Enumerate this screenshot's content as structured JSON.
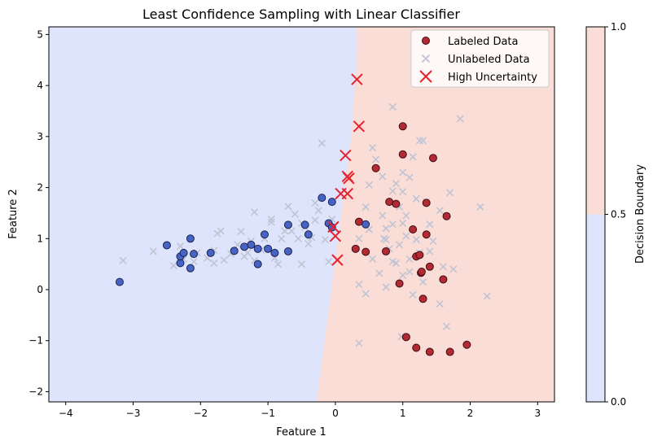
{
  "chart_data": {
    "type": "scatter",
    "title": "Least Confidence Sampling with Linear Classifier",
    "xlabel": "Feature 1",
    "ylabel": "Feature 2",
    "xlim": [
      -4.25,
      3.25
    ],
    "ylim": [
      -2.2,
      5.15
    ],
    "xticks": [
      -4,
      -3,
      -2,
      -1,
      0,
      1,
      2,
      3
    ],
    "yticks": [
      -2,
      -1,
      0,
      1,
      2,
      3,
      4,
      5
    ],
    "legend_position": "top-right",
    "colors": {
      "class0_region": "#dde4fb",
      "class1_region": "#f9ddd6",
      "class0_point": "#4863c6",
      "class1_point": "#b32a35",
      "unlabeled": "#c0c4d4",
      "high_uncertainty": "#e8212f"
    },
    "decision_boundary": [
      [
        0.32,
        5.15
      ],
      [
        0.32,
        4.6
      ],
      [
        0.28,
        3.9
      ],
      [
        0.25,
        3.2
      ],
      [
        0.2,
        2.6
      ],
      [
        0.15,
        2.1
      ],
      [
        0.1,
        1.6
      ],
      [
        0.05,
        1.1
      ],
      [
        0.0,
        0.6
      ],
      [
        -0.05,
        0.1
      ],
      [
        -0.1,
        -0.4
      ],
      [
        -0.15,
        -0.9
      ],
      [
        -0.2,
        -1.4
      ],
      [
        -0.25,
        -1.9
      ],
      [
        -0.28,
        -2.2
      ]
    ],
    "series": [
      {
        "name": "Labeled Data",
        "marker": "circle",
        "points": [
          [
            -3.2,
            0.15
          ],
          [
            -2.5,
            0.87
          ],
          [
            -2.3,
            0.52
          ],
          [
            -2.3,
            0.65
          ],
          [
            -2.25,
            0.72
          ],
          [
            -2.15,
            1.0
          ],
          [
            -2.15,
            0.42
          ],
          [
            -2.1,
            0.7
          ],
          [
            -1.85,
            0.72
          ],
          [
            -1.5,
            0.76
          ],
          [
            -1.35,
            0.84
          ],
          [
            -1.25,
            0.88
          ],
          [
            -1.15,
            0.8
          ],
          [
            -1.15,
            0.5
          ],
          [
            -1.05,
            1.08
          ],
          [
            -1.0,
            0.8
          ],
          [
            -0.9,
            0.72
          ],
          [
            -0.7,
            1.27
          ],
          [
            -0.7,
            0.75
          ],
          [
            -0.45,
            1.27
          ],
          [
            -0.4,
            1.08
          ],
          [
            -0.2,
            1.8
          ],
          [
            -0.05,
            1.72
          ],
          [
            -0.1,
            1.3
          ],
          [
            -0.05,
            1.22
          ],
          [
            0.3,
            0.8
          ],
          [
            0.35,
            1.33
          ],
          [
            0.45,
            1.28
          ],
          [
            0.45,
            0.74
          ],
          [
            0.6,
            2.38
          ],
          [
            0.75,
            0.75
          ],
          [
            0.8,
            1.72
          ],
          [
            0.9,
            1.68
          ],
          [
            1.0,
            3.2
          ],
          [
            1.0,
            2.65
          ],
          [
            0.95,
            0.12
          ],
          [
            1.05,
            -0.93
          ],
          [
            1.15,
            1.18
          ],
          [
            1.2,
            0.65
          ],
          [
            1.25,
            0.68
          ],
          [
            1.27,
            0.33
          ],
          [
            1.3,
            -0.18
          ],
          [
            1.35,
            1.7
          ],
          [
            1.35,
            1.08
          ],
          [
            1.4,
            0.45
          ],
          [
            1.45,
            2.58
          ],
          [
            1.6,
            0.2
          ],
          [
            1.65,
            1.44
          ],
          [
            1.2,
            -1.14
          ],
          [
            1.4,
            -1.22
          ],
          [
            1.7,
            -1.22
          ],
          [
            1.95,
            -1.08
          ],
          [
            1.28,
            0.35
          ]
        ],
        "classes": [
          0,
          0,
          0,
          0,
          0,
          0,
          0,
          0,
          0,
          0,
          0,
          0,
          0,
          0,
          0,
          0,
          0,
          0,
          0,
          0,
          0,
          0,
          0,
          0,
          0,
          1,
          1,
          0,
          1,
          1,
          1,
          1,
          1,
          1,
          1,
          1,
          1,
          1,
          1,
          1,
          1,
          1,
          1,
          1,
          1,
          1,
          1,
          1,
          1,
          1,
          1,
          1,
          1
        ]
      },
      {
        "name": "Unlabeled Data",
        "marker": "x",
        "points": [
          [
            -3.15,
            0.57
          ],
          [
            -2.7,
            0.75
          ],
          [
            -2.4,
            0.47
          ],
          [
            -2.3,
            0.85
          ],
          [
            -2.25,
            0.6
          ],
          [
            -2.1,
            0.55
          ],
          [
            -2.05,
            0.72
          ],
          [
            -1.9,
            0.62
          ],
          [
            -1.8,
            0.77
          ],
          [
            -1.75,
            1.1
          ],
          [
            -1.8,
            0.52
          ],
          [
            -1.7,
            1.15
          ],
          [
            -1.65,
            0.58
          ],
          [
            -1.55,
            0.7
          ],
          [
            -1.45,
            0.88
          ],
          [
            -1.4,
            1.14
          ],
          [
            -1.35,
            0.65
          ],
          [
            -1.3,
            0.72
          ],
          [
            -1.25,
            0.95
          ],
          [
            -1.2,
            0.57
          ],
          [
            -1.2,
            1.52
          ],
          [
            -1.1,
            0.78
          ],
          [
            -1.05,
            1.0
          ],
          [
            -0.95,
            1.32
          ],
          [
            -0.9,
            0.62
          ],
          [
            -0.85,
            0.5
          ],
          [
            -0.8,
            1.0
          ],
          [
            -0.75,
            1.15
          ],
          [
            -0.65,
            1.15
          ],
          [
            -0.7,
            1.63
          ],
          [
            -0.6,
            1.48
          ],
          [
            -0.55,
            1.0
          ],
          [
            -0.5,
            1.3
          ],
          [
            -0.45,
            1.22
          ],
          [
            -0.4,
            0.9
          ],
          [
            -0.35,
            1.02
          ],
          [
            -0.3,
            1.36
          ],
          [
            -0.25,
            1.55
          ],
          [
            -0.2,
            2.87
          ],
          [
            -0.1,
            0.55
          ],
          [
            -0.05,
            1.38
          ],
          [
            -0.15,
            0.98
          ],
          [
            -0.3,
            1.7
          ],
          [
            -0.5,
            0.5
          ],
          [
            -0.95,
            1.38
          ],
          [
            0.35,
            1.0
          ],
          [
            0.45,
            1.62
          ],
          [
            0.5,
            2.05
          ],
          [
            0.55,
            0.6
          ],
          [
            0.5,
            1.18
          ],
          [
            0.55,
            2.78
          ],
          [
            0.6,
            2.55
          ],
          [
            0.65,
            0.32
          ],
          [
            0.7,
            1.45
          ],
          [
            0.7,
            2.22
          ],
          [
            0.72,
            1.0
          ],
          [
            0.75,
            0.05
          ],
          [
            0.75,
            0.98
          ],
          [
            0.8,
            0.8
          ],
          [
            0.85,
            1.28
          ],
          [
            0.85,
            1.93
          ],
          [
            0.9,
            0.52
          ],
          [
            0.9,
            2.08
          ],
          [
            0.95,
            1.62
          ],
          [
            0.95,
            0.88
          ],
          [
            1.0,
            1.3
          ],
          [
            1.0,
            1.92
          ],
          [
            1.0,
            2.3
          ],
          [
            1.0,
            0.28
          ],
          [
            1.05,
            1.45
          ],
          [
            1.05,
            1.05
          ],
          [
            1.1,
            2.2
          ],
          [
            1.1,
            0.6
          ],
          [
            1.1,
            0.35
          ],
          [
            1.15,
            -0.1
          ],
          [
            1.15,
            2.6
          ],
          [
            1.2,
            1.78
          ],
          [
            1.2,
            0.98
          ],
          [
            1.25,
            0.72
          ],
          [
            1.25,
            2.92
          ],
          [
            1.3,
            0.15
          ],
          [
            1.35,
            1.72
          ],
          [
            1.4,
            1.28
          ],
          [
            1.4,
            0.75
          ],
          [
            1.45,
            0.95
          ],
          [
            1.55,
            1.55
          ],
          [
            1.55,
            -0.28
          ],
          [
            1.6,
            0.45
          ],
          [
            1.65,
            -0.72
          ],
          [
            1.7,
            1.9
          ],
          [
            1.75,
            0.4
          ],
          [
            1.85,
            3.35
          ],
          [
            2.15,
            1.62
          ],
          [
            2.25,
            -0.13
          ],
          [
            0.85,
            3.58
          ],
          [
            0.98,
            -0.92
          ],
          [
            0.45,
            -0.08
          ],
          [
            0.35,
            -1.05
          ],
          [
            0.35,
            0.1
          ],
          [
            0.85,
            0.55
          ],
          [
            1.3,
            2.92
          ],
          [
            0.75,
            1.2
          ]
        ]
      },
      {
        "name": "High Uncertainty",
        "marker": "x-large",
        "points": [
          [
            0.32,
            4.12
          ],
          [
            0.35,
            3.2
          ],
          [
            0.15,
            2.63
          ],
          [
            0.18,
            2.22
          ],
          [
            0.2,
            2.18
          ],
          [
            0.18,
            1.88
          ],
          [
            0.08,
            1.88
          ],
          [
            -0.03,
            1.23
          ],
          [
            0.0,
            1.05
          ],
          [
            0.03,
            0.58
          ]
        ]
      }
    ],
    "colorbar": {
      "label": "Decision Boundary",
      "ticks": [
        "0.0",
        "0.5",
        "1.0"
      ],
      "range": [
        0,
        1
      ],
      "split": 0.5
    }
  }
}
